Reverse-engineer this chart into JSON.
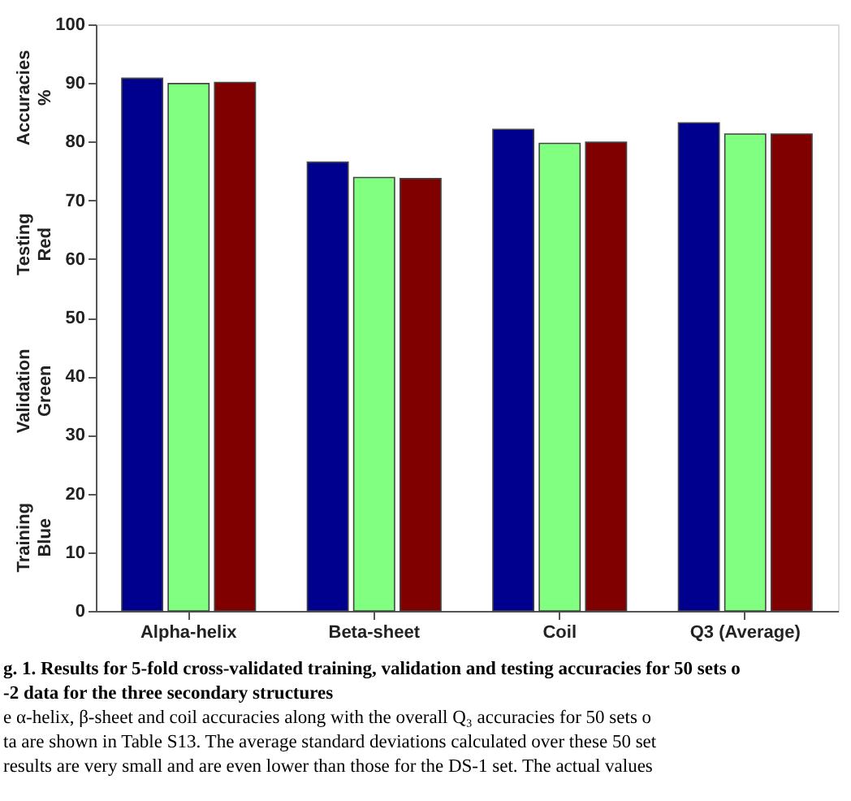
{
  "chart_data": {
    "type": "bar",
    "categories": [
      "Alpha-helix",
      "Beta-sheet",
      "Coil",
      "Q3 (Average)"
    ],
    "ylabel": "Training Blue   Validation Green   Testing Red   Accuracies %",
    "series": [
      {
        "color": "#00008f",
        "values": [
          90.8,
          76.5,
          82.1,
          83.2
        ]
      },
      {
        "color": "#80ff80",
        "values": [
          89.9,
          73.9,
          79.7,
          81.3
        ]
      },
      {
        "color": "#800000",
        "values": [
          90.1,
          73.7,
          79.9,
          81.3
        ]
      }
    ],
    "ylim": [
      0,
      100
    ],
    "yticks": [
      0,
      10,
      20,
      30,
      40,
      50,
      60,
      70,
      80,
      90,
      100
    ],
    "grid": false,
    "annotations": [
      "g. 1. Results for 5-fold cross-validated training, validation and testing accuracies for 50 sets o",
      "-2 data for the three secondary structures",
      "e α-helix, β-sheet and coil accuracies along with the overall Q₃ accuracies for 50 sets o",
      "ta are shown in Table S13. The average standard deviations calculated over these 50 set",
      "results are very small and are even lower than those for the DS-1 set. The actual values"
    ]
  }
}
